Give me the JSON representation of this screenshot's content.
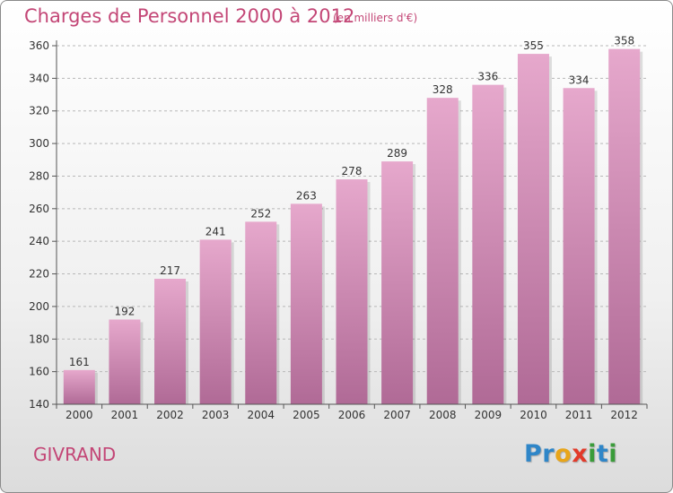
{
  "title": "Charges de Personnel 2000 à 2012",
  "subtitle": "(en milliers d'€)",
  "town": "GIVRAND",
  "logo": {
    "letters": [
      {
        "char": "P",
        "color": "#2f86c8"
      },
      {
        "char": "r",
        "color": "#2f86c8"
      },
      {
        "char": "o",
        "color": "#e8a51a"
      },
      {
        "char": "x",
        "color": "#e23a2a"
      },
      {
        "char": "i",
        "color": "#3a9c3a"
      },
      {
        "char": "t",
        "color": "#2f86c8"
      },
      {
        "char": "i",
        "color": "#3a9c3a"
      }
    ]
  },
  "chart_data": {
    "type": "bar",
    "title": "Charges de Personnel 2000 à 2012",
    "subtitle": "(en milliers d'€)",
    "categories": [
      "2000",
      "2001",
      "2002",
      "2003",
      "2004",
      "2005",
      "2006",
      "2007",
      "2008",
      "2009",
      "2010",
      "2011",
      "2012"
    ],
    "values": [
      161,
      192,
      217,
      241,
      252,
      263,
      278,
      289,
      328,
      336,
      355,
      334,
      358
    ],
    "ylim": [
      140,
      360
    ],
    "yticks": [
      140,
      160,
      180,
      200,
      220,
      240,
      260,
      280,
      300,
      320,
      340,
      360
    ],
    "grid": "horizontal dashed",
    "bar_color_top": "#e6a8cc",
    "bar_color_bottom": "#b06a96",
    "xlabel": "",
    "ylabel": ""
  }
}
